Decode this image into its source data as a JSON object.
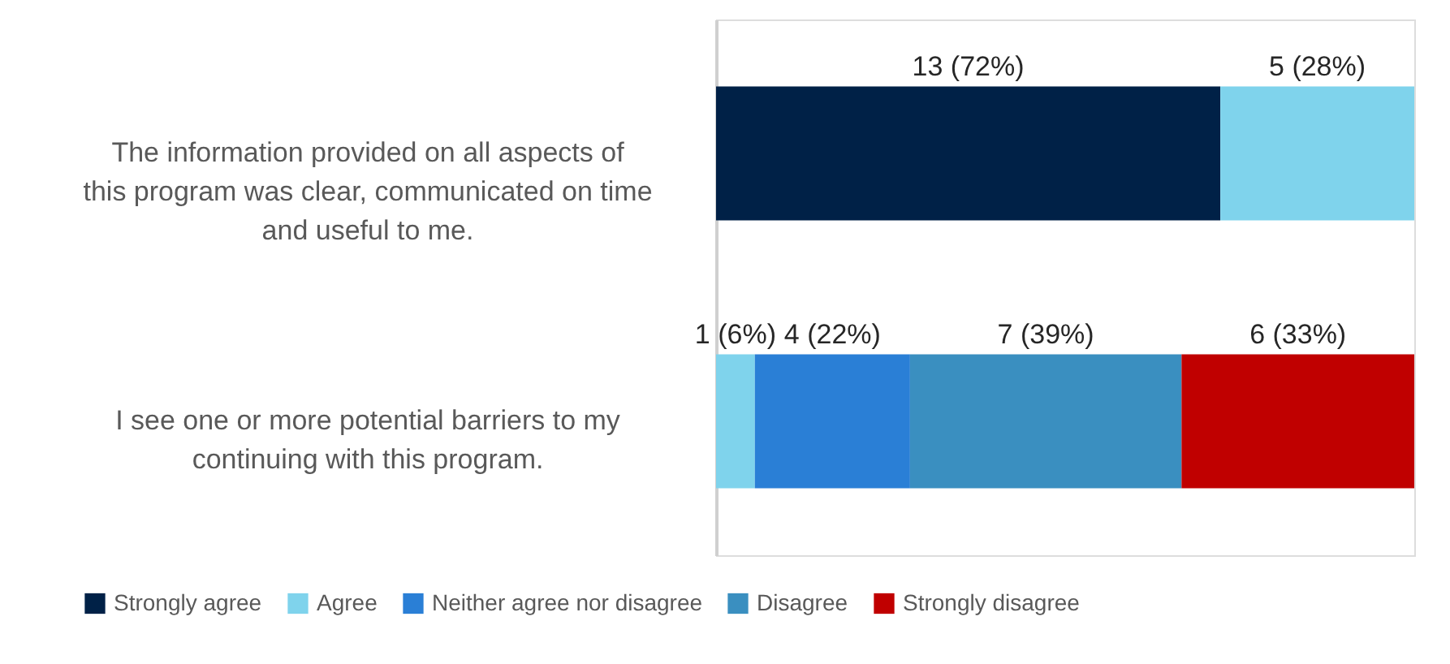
{
  "chart_data": {
    "type": "bar",
    "orientation": "horizontal",
    "stacked": true,
    "categories": [
      "The information provided on all aspects of this program was clear, communicated on time and useful to me.",
      "I see one or more potential barriers to my continuing with this program."
    ],
    "series": [
      {
        "name": "Strongly agree",
        "color": "#002147",
        "values": [
          13,
          null
        ],
        "value_labels": [
          "13 (72%)",
          null
        ]
      },
      {
        "name": "Agree",
        "color": "#7fd3ec",
        "values": [
          5,
          1
        ],
        "value_labels": [
          "5 (28%)",
          "1 (6%)"
        ]
      },
      {
        "name": "Neither agree nor disagree",
        "color": "#2a7fd6",
        "values": [
          null,
          4
        ],
        "value_labels": [
          null,
          "4 (22%)"
        ]
      },
      {
        "name": "Disagree",
        "color": "#3a8fc0",
        "values": [
          null,
          7
        ],
        "value_labels": [
          null,
          "7 (39%)"
        ]
      },
      {
        "name": "Strongly disagree",
        "color": "#c00000",
        "values": [
          null,
          6
        ],
        "value_labels": [
          null,
          "6 (33%)"
        ]
      }
    ],
    "legend": "bottom",
    "grid": false
  }
}
